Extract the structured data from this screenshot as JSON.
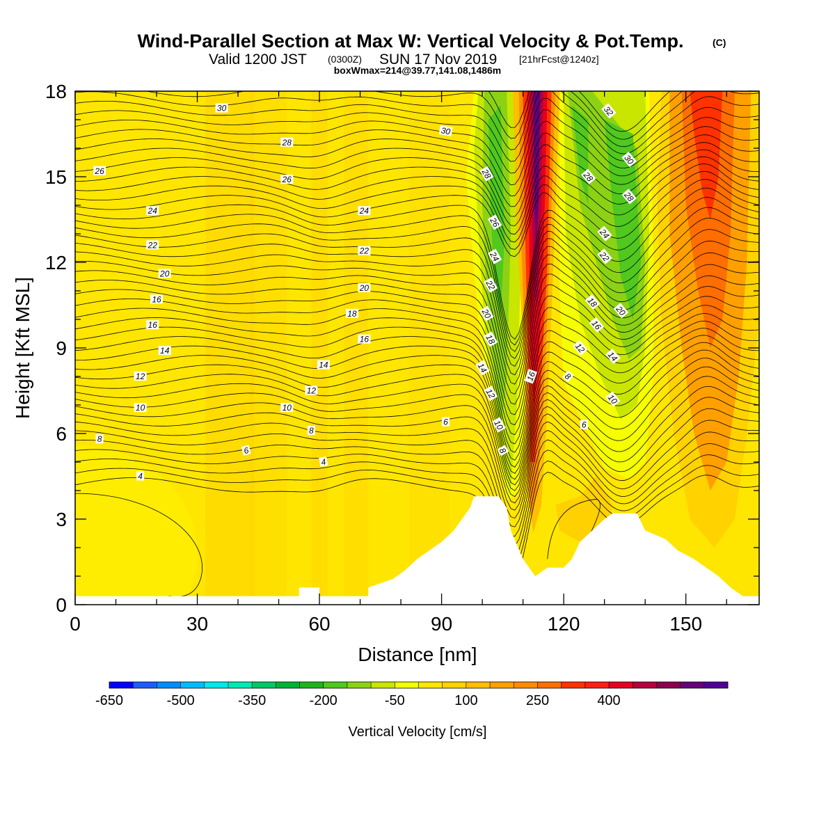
{
  "title": {
    "main": "Wind-Parallel Section at Max W: Vertical Velocity & Pot.Temp.",
    "copyright": "(C)",
    "valid_prefix": "Valid 1200 JST",
    "valid_utc": "(0300Z)",
    "valid_date": "SUN 17 Nov 2019",
    "forecast": "[21hrFcst@1240z]",
    "box": "boxWmax=214@39.77,141.08,1486m"
  },
  "chart_data": {
    "type": "heatmap",
    "xlabel": "Distance [nm]",
    "ylabel": "Height [Kft MSL]",
    "xlim": [
      0,
      168
    ],
    "ylim": [
      0,
      18
    ],
    "x_ticks": [
      "0",
      "30",
      "60",
      "90",
      "120",
      "150"
    ],
    "y_ticks": [
      "0",
      "3",
      "6",
      "9",
      "12",
      "15",
      "18"
    ],
    "colorbar": {
      "label": "Vertical Velocity [cm/s]",
      "tick_labels": [
        "-650",
        "-500",
        "-350",
        "-200",
        "-50",
        "100",
        "250",
        "400"
      ],
      "colors": [
        "#0000ff",
        "#1e5cff",
        "#008cff",
        "#00bcff",
        "#00e8e8",
        "#00e8b4",
        "#00c864",
        "#00b432",
        "#1eb41e",
        "#50c81e",
        "#8cd214",
        "#c8e600",
        "#f5ff00",
        "#ffe600",
        "#ffd200",
        "#ffbe00",
        "#ffa000",
        "#ff8c00",
        "#ff6e00",
        "#ff3200",
        "#ff1e14",
        "#e6001e",
        "#b4003c",
        "#8c0050",
        "#640078",
        "#500096"
      ]
    },
    "wind_bands": [
      {
        "label": "descent band west",
        "center_x": 106,
        "color_class": "green",
        "w_min": -200
      },
      {
        "label": "ascent core",
        "center_x": 114,
        "color_class": "purple",
        "w_max": 430
      },
      {
        "label": "descent band east",
        "center_x": 134,
        "color_class": "green",
        "w_min": -200
      },
      {
        "label": "ascent band east",
        "center_x": 155,
        "color_class": "red",
        "w_max": 250
      }
    ],
    "terrain": [
      {
        "x": 0,
        "h": 0.3
      },
      {
        "x": 55,
        "h": 0.3
      },
      {
        "x": 55,
        "h": 0.6
      },
      {
        "x": 60,
        "h": 0.6
      },
      {
        "x": 60,
        "h": 0.3
      },
      {
        "x": 72,
        "h": 0.3
      },
      {
        "x": 72,
        "h": 0.6
      },
      {
        "x": 78,
        "h": 0.9
      },
      {
        "x": 81,
        "h": 1.2
      },
      {
        "x": 84,
        "h": 1.6
      },
      {
        "x": 87,
        "h": 1.9
      },
      {
        "x": 90,
        "h": 2.2
      },
      {
        "x": 93,
        "h": 2.6
      },
      {
        "x": 95,
        "h": 3.0
      },
      {
        "x": 97,
        "h": 3.4
      },
      {
        "x": 98,
        "h": 3.8
      },
      {
        "x": 104,
        "h": 3.8
      },
      {
        "x": 106,
        "h": 3.4
      },
      {
        "x": 107,
        "h": 2.6
      },
      {
        "x": 110,
        "h": 1.6
      },
      {
        "x": 113,
        "h": 1.0
      },
      {
        "x": 116,
        "h": 1.3
      },
      {
        "x": 120,
        "h": 1.3
      },
      {
        "x": 122,
        "h": 1.6
      },
      {
        "x": 124,
        "h": 2.2
      },
      {
        "x": 127,
        "h": 2.6
      },
      {
        "x": 130,
        "h": 3.0
      },
      {
        "x": 132,
        "h": 3.2
      },
      {
        "x": 138,
        "h": 3.2
      },
      {
        "x": 140,
        "h": 2.6
      },
      {
        "x": 145,
        "h": 2.3
      },
      {
        "x": 148,
        "h": 1.9
      },
      {
        "x": 152,
        "h": 1.6
      },
      {
        "x": 155,
        "h": 1.3
      },
      {
        "x": 158,
        "h": 1.0
      },
      {
        "x": 161,
        "h": 0.6
      },
      {
        "x": 164,
        "h": 0.3
      },
      {
        "x": 168,
        "h": 0.3
      }
    ],
    "isentrope_labels": [
      {
        "text": "30",
        "x": 36,
        "y": 17.4,
        "angle": 0
      },
      {
        "text": "30",
        "x": 91,
        "y": 16.6,
        "angle": 10
      },
      {
        "text": "28",
        "x": 52,
        "y": 16.2,
        "angle": 0
      },
      {
        "text": "26",
        "x": 6,
        "y": 15.2,
        "angle": 0
      },
      {
        "text": "26",
        "x": 52,
        "y": 14.9,
        "angle": 0
      },
      {
        "text": "24",
        "x": 19,
        "y": 13.8,
        "angle": 0
      },
      {
        "text": "24",
        "x": 71,
        "y": 13.8,
        "angle": 0
      },
      {
        "text": "22",
        "x": 19,
        "y": 12.6,
        "angle": 0
      },
      {
        "text": "22",
        "x": 71,
        "y": 12.4,
        "angle": 0
      },
      {
        "text": "20",
        "x": 22,
        "y": 11.6,
        "angle": 0
      },
      {
        "text": "20",
        "x": 71,
        "y": 11.1,
        "angle": 0
      },
      {
        "text": "18",
        "x": 68,
        "y": 10.2,
        "angle": 0
      },
      {
        "text": "16",
        "x": 20,
        "y": 10.7,
        "angle": 0
      },
      {
        "text": "16",
        "x": 19,
        "y": 9.8,
        "angle": 0
      },
      {
        "text": "16",
        "x": 71,
        "y": 9.3,
        "angle": 0
      },
      {
        "text": "14",
        "x": 22,
        "y": 8.9,
        "angle": 0
      },
      {
        "text": "14",
        "x": 61,
        "y": 8.4,
        "angle": 0
      },
      {
        "text": "12",
        "x": 16,
        "y": 8.0,
        "angle": 0
      },
      {
        "text": "12",
        "x": 58,
        "y": 7.5,
        "angle": 0
      },
      {
        "text": "10",
        "x": 16,
        "y": 6.9,
        "angle": 0
      },
      {
        "text": "10",
        "x": 52,
        "y": 6.9,
        "angle": 0
      },
      {
        "text": "8",
        "x": 6,
        "y": 5.8,
        "angle": 0
      },
      {
        "text": "8",
        "x": 58,
        "y": 6.1,
        "angle": 0
      },
      {
        "text": "6",
        "x": 42,
        "y": 5.4,
        "angle": -15
      },
      {
        "text": "6",
        "x": 91,
        "y": 6.4,
        "angle": 0
      },
      {
        "text": "4",
        "x": 16,
        "y": 4.5,
        "angle": 0
      },
      {
        "text": "4",
        "x": 61,
        "y": 5.0,
        "angle": -10
      },
      {
        "text": "28",
        "x": 101,
        "y": 15.1,
        "angle": 60
      },
      {
        "text": "26",
        "x": 103,
        "y": 13.4,
        "angle": 60
      },
      {
        "text": "24",
        "x": 103,
        "y": 12.2,
        "angle": 60
      },
      {
        "text": "22",
        "x": 102,
        "y": 11.2,
        "angle": 60
      },
      {
        "text": "20",
        "x": 101,
        "y": 10.2,
        "angle": 60
      },
      {
        "text": "18",
        "x": 102,
        "y": 9.3,
        "angle": 60
      },
      {
        "text": "14",
        "x": 100,
        "y": 8.3,
        "angle": 60
      },
      {
        "text": "12",
        "x": 102,
        "y": 7.4,
        "angle": 60
      },
      {
        "text": "10",
        "x": 104,
        "y": 6.3,
        "angle": 60
      },
      {
        "text": "8",
        "x": 105,
        "y": 5.4,
        "angle": 60
      },
      {
        "text": "16",
        "x": 112,
        "y": 8.0,
        "angle": -70
      },
      {
        "text": "8",
        "x": 121,
        "y": 8.0,
        "angle": 40
      },
      {
        "text": "6",
        "x": 125,
        "y": 6.3,
        "angle": 0
      },
      {
        "text": "32",
        "x": 131,
        "y": 17.3,
        "angle": 50
      },
      {
        "text": "30",
        "x": 136,
        "y": 15.6,
        "angle": 50
      },
      {
        "text": "28",
        "x": 126,
        "y": 15.0,
        "angle": 50
      },
      {
        "text": "28",
        "x": 136,
        "y": 14.3,
        "angle": 50
      },
      {
        "text": "24",
        "x": 130,
        "y": 13.0,
        "angle": 50
      },
      {
        "text": "22",
        "x": 130,
        "y": 12.2,
        "angle": 50
      },
      {
        "text": "18",
        "x": 127,
        "y": 10.6,
        "angle": 50
      },
      {
        "text": "20",
        "x": 134,
        "y": 10.3,
        "angle": 50
      },
      {
        "text": "16",
        "x": 128,
        "y": 9.8,
        "angle": 50
      },
      {
        "text": "12",
        "x": 124,
        "y": 9.0,
        "angle": 50
      },
      {
        "text": "14",
        "x": 132,
        "y": 8.7,
        "angle": 50
      },
      {
        "text": "10",
        "x": 132,
        "y": 7.2,
        "angle": 50
      }
    ]
  }
}
